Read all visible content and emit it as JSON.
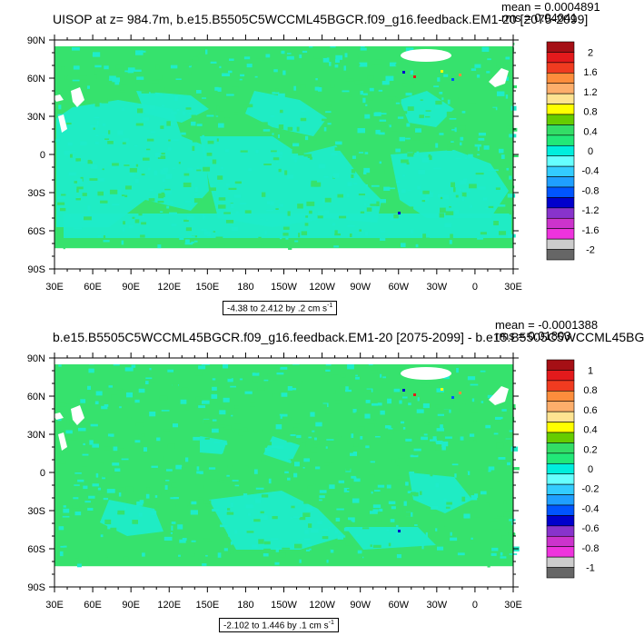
{
  "chart_data": [
    {
      "type": "heatmap",
      "title": "UISOP at z= 984.7m, b.e15.B5505C5WCCML45BGCR.f09_g16.feedback.EM1-20 [2075-2099]",
      "mean_label": "mean = 0.0004891",
      "rms_label": "rms = 0.04041",
      "range_label": "-4.38 to 2.412 by .2 cm s",
      "range_unit_exp": "-1",
      "x_ticks": [
        "30E",
        "60E",
        "90E",
        "120E",
        "150E",
        "180",
        "150W",
        "120W",
        "90W",
        "60W",
        "30W",
        "0",
        "30E"
      ],
      "y_ticks": [
        "90N",
        "60N",
        "30N",
        "0",
        "30S",
        "60S",
        "90S"
      ],
      "colorbar_labels": [
        "2",
        "1.6",
        "1.2",
        "0.8",
        "0.4",
        "0",
        "-0.4",
        "-0.8",
        "-1.2",
        "-1.6",
        "-2"
      ],
      "colorbar_colors": [
        "#a50f15",
        "#e31a1c",
        "#f03b20",
        "#fd8d3c",
        "#fdae6b",
        "#fee391",
        "#ffff00",
        "#66cc00",
        "#33dd66",
        "#22e878",
        "#00eedd",
        "#66ffff",
        "#33ccff",
        "#1f9fff",
        "#0055ff",
        "#0000cc",
        "#8833cc",
        "#cc33cc",
        "#ee33dd",
        "#cccccc",
        "#666666"
      ],
      "dominant_colors": {
        "land": "#36e26d",
        "ocean": "#1fecc9"
      }
    },
    {
      "type": "heatmap",
      "title": "b.e15.B5505C5WCCML45BGCR.f09_g16.feedback.EM1-20 [2075-2099] - b.e15.B5505C5WCCML45BG",
      "mean_label": "mean = -0.0001388",
      "rms_label": "rms = 0.01803",
      "range_label": "-2.102 to 1.446 by .1 cm s",
      "range_unit_exp": "-1",
      "x_ticks": [
        "30E",
        "60E",
        "90E",
        "120E",
        "150E",
        "180",
        "150W",
        "120W",
        "90W",
        "60W",
        "30W",
        "0",
        "30E"
      ],
      "y_ticks": [
        "90N",
        "60N",
        "30N",
        "0",
        "30S",
        "60S",
        "90S"
      ],
      "colorbar_labels": [
        "1",
        "0.8",
        "0.6",
        "0.4",
        "0.2",
        "0",
        "-0.2",
        "-0.4",
        "-0.6",
        "-0.8",
        "-1"
      ],
      "colorbar_colors": [
        "#a50f15",
        "#e31a1c",
        "#f03b20",
        "#fd8d3c",
        "#fdae6b",
        "#fee391",
        "#ffff00",
        "#66cc00",
        "#33dd66",
        "#22e878",
        "#00eedd",
        "#66ffff",
        "#33ccff",
        "#1f9fff",
        "#0055ff",
        "#0000cc",
        "#8833cc",
        "#cc33cc",
        "#ee33dd",
        "#cccccc",
        "#666666"
      ],
      "dominant_colors": {
        "land": "#36e26d",
        "ocean": "#1fecc9"
      }
    }
  ]
}
